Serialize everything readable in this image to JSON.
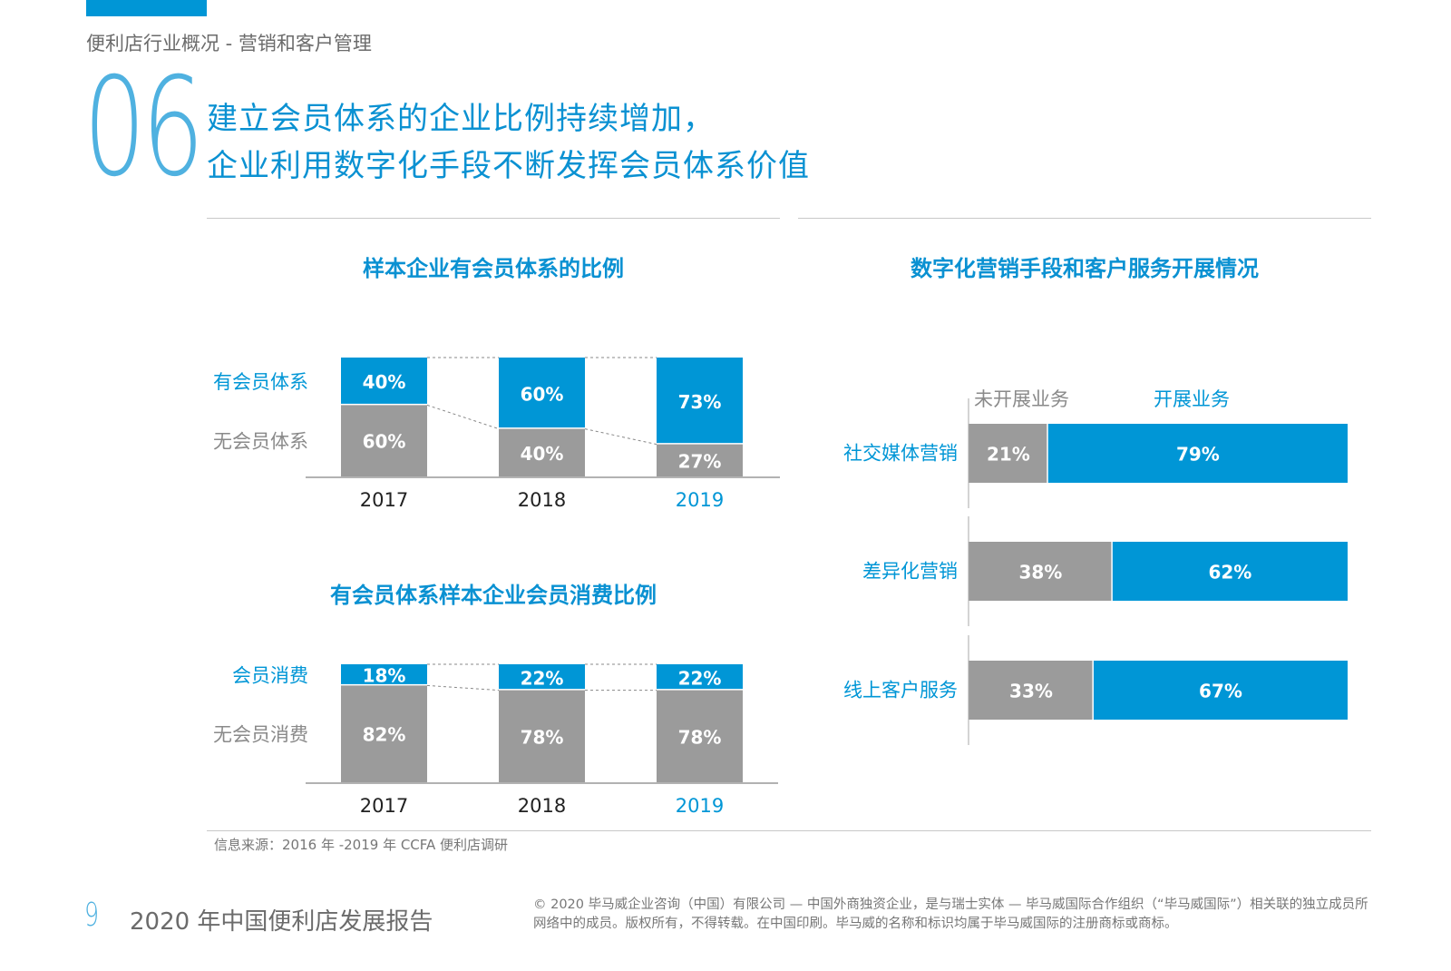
{
  "header": {
    "breadcrumb": "便利店行业概况 - 营销和客户管理",
    "section_number": "06",
    "headline_line1": "建立会员体系的企业比例持续增加，",
    "headline_line2": "企业利用数字化手段不断发挥会员体系价值"
  },
  "colors": {
    "accent": "#0096d6",
    "gray_bar": "#9b9b9b",
    "title_blue": "#0a91d2"
  },
  "chart_data": [
    {
      "type": "bar",
      "stacked": true,
      "title": "样本企业有会员体系的比例",
      "categories": [
        "2017",
        "2018",
        "2019"
      ],
      "highlight_category": "2019",
      "series": [
        {
          "name": "有会员体系",
          "values": [
            40,
            60,
            73
          ],
          "labels": [
            "40%",
            "60%",
            "73%"
          ],
          "color": "#0096d6"
        },
        {
          "name": "无会员体系",
          "values": [
            60,
            40,
            27
          ],
          "labels": [
            "60%",
            "40%",
            "27%"
          ],
          "color": "#9b9b9b"
        }
      ],
      "unit": "%",
      "ylim": [
        0,
        100
      ]
    },
    {
      "type": "bar",
      "stacked": true,
      "title": "有会员体系样本企业会员消费比例",
      "categories": [
        "2017",
        "2018",
        "2019"
      ],
      "highlight_category": "2019",
      "series": [
        {
          "name": "会员消费",
          "values": [
            18,
            22,
            22
          ],
          "labels": [
            "18%",
            "22%",
            "22%"
          ],
          "color": "#0096d6"
        },
        {
          "name": "无会员消费",
          "values": [
            82,
            78,
            78
          ],
          "labels": [
            "82%",
            "78%",
            "78%"
          ],
          "color": "#9b9b9b"
        }
      ],
      "unit": "%",
      "ylim": [
        0,
        100
      ]
    },
    {
      "type": "bar",
      "orientation": "horizontal",
      "stacked": true,
      "title": "数字化营销手段和客户服务开展情况",
      "categories": [
        "社交媒体营销",
        "差异化营销",
        "线上客户服务"
      ],
      "series": [
        {
          "name": "未开展业务",
          "values": [
            21,
            38,
            33
          ],
          "labels": [
            "21%",
            "38%",
            "33%"
          ],
          "color": "#9b9b9b"
        },
        {
          "name": "开展业务",
          "values": [
            79,
            62,
            67
          ],
          "labels": [
            "79%",
            "62%",
            "67%"
          ],
          "color": "#0096d6"
        }
      ],
      "unit": "%",
      "xlim": [
        0,
        100
      ]
    }
  ],
  "footer": {
    "source": "信息来源：2016 年 -2019 年 CCFA 便利店调研",
    "page_number": "9",
    "report_title": "2020 年中国便利店发展报告",
    "copyright": "© 2020 毕马威企业咨询（中国）有限公司 — 中国外商独资企业，是与瑞士实体 — 毕马威国际合作组织（“毕马威国际”）相关联的独立成员所网络中的成员。版权所有，不得转载。在中国印刷。毕马威的名称和标识均属于毕马威国际的注册商标或商标。"
  }
}
